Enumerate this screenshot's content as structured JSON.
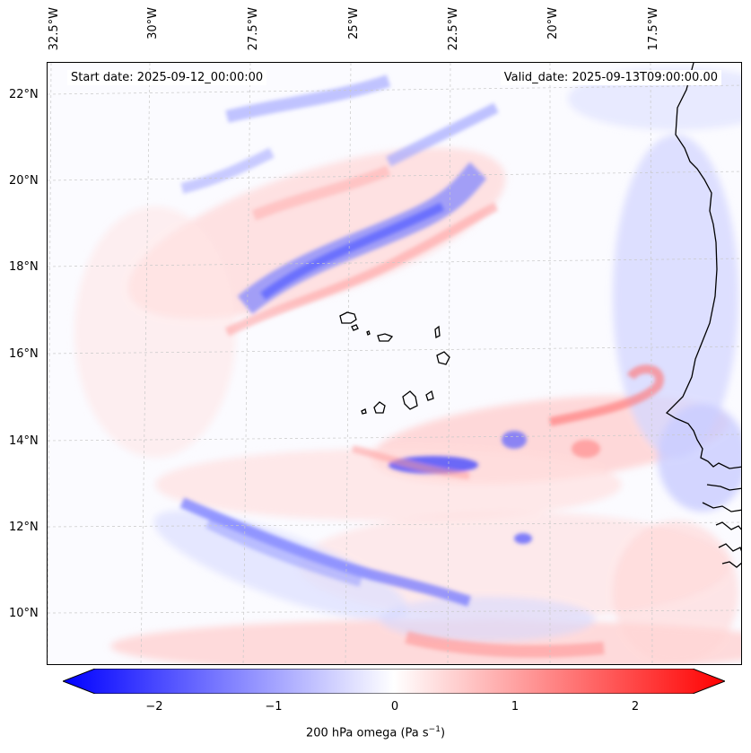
{
  "map": {
    "start_date": "Start date: 2025-09-12_00:00:00",
    "valid_date": "Valid_date: 2025-09-13T09:00:00.00",
    "lon_labels": [
      "32.5°W",
      "30°W",
      "27.5°W",
      "25°W",
      "22.5°W",
      "20°W",
      "17.5°W"
    ],
    "lat_labels": [
      "22°N",
      "20°N",
      "18°N",
      "16°N",
      "14°N",
      "12°N",
      "10°N"
    ],
    "field": "200 hPa omega",
    "colormap": "bwr",
    "colors": {
      "negative": "#0000ff",
      "zero": "#ffffff",
      "positive": "#ff0000",
      "coastline": "#000000"
    }
  },
  "colorbar": {
    "ticks": [
      "−2",
      "−1",
      "0",
      "1",
      "2"
    ],
    "range": [
      -2.6,
      2.6
    ],
    "label_prefix": "200 hPa omega (Pa s",
    "label_exp": "−1",
    "label_suffix": ")"
  }
}
